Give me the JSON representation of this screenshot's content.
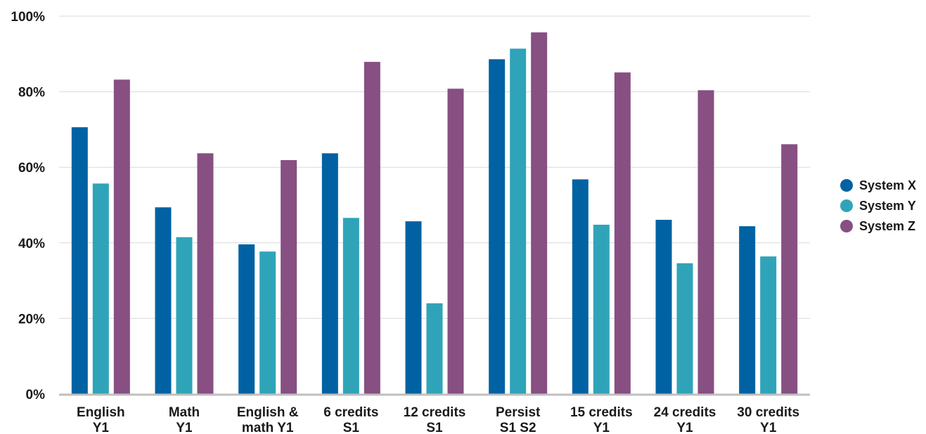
{
  "chart_data": {
    "type": "bar",
    "title": "",
    "xlabel": "",
    "ylabel": "",
    "ylim": [
      0,
      100
    ],
    "yticks": [
      "0%",
      "20%",
      "40%",
      "60%",
      "80%",
      "100%"
    ],
    "grid": true,
    "legend_position": "right",
    "categories": [
      [
        "English",
        "Y1"
      ],
      [
        "Math",
        "Y1"
      ],
      [
        "English &",
        "math Y1"
      ],
      [
        "6 credits",
        "S1"
      ],
      [
        "12 credits",
        "S1"
      ],
      [
        "Persist",
        "S1 S2"
      ],
      [
        "15 credits",
        "Y1"
      ],
      [
        "24 credits",
        "Y1"
      ],
      [
        "30 credits",
        "Y1"
      ]
    ],
    "series": [
      {
        "name": "System X",
        "color": "#0062a3",
        "values": [
          70.6,
          49.4,
          39.6,
          63.7,
          45.7,
          88.6,
          56.8,
          46.1,
          44.4
        ]
      },
      {
        "name": "System Y",
        "color": "#2fa4b9",
        "values": [
          55.7,
          41.5,
          37.7,
          46.6,
          24.0,
          91.4,
          44.8,
          34.6,
          36.4
        ]
      },
      {
        "name": "System Z",
        "color": "#874f82",
        "values": [
          83.2,
          63.7,
          61.9,
          87.9,
          80.8,
          95.7,
          85.1,
          80.4,
          66.1
        ]
      }
    ]
  }
}
